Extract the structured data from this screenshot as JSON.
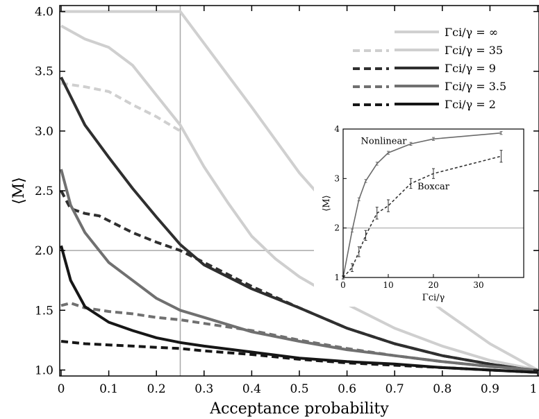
{
  "chart_data": [
    {
      "type": "line",
      "xlabel": "Acceptance probability",
      "ylabel": "⟨M⟩",
      "xlim": [
        0,
        1
      ],
      "ylim": [
        0.95,
        4.05
      ],
      "xticks": [
        "0",
        "0.1",
        "0.2",
        "0.3",
        "0.4",
        "0.5",
        "0.6",
        "0.7",
        "0.8",
        "0.9",
        "1"
      ],
      "yticks": [
        "1.0",
        "1.5",
        "2.0",
        "2.5",
        "3.0",
        "3.5",
        "4.0"
      ],
      "grid": false,
      "legend_position": "top-right",
      "reference_lines": {
        "x": 0.25,
        "y": 2.0
      },
      "series": [
        {
          "name": "Γci/γ = ∞",
          "style": "solid",
          "color": "#d0d0d0",
          "points": [
            [
              0,
              4.0
            ],
            [
              0.25,
              4.0
            ],
            [
              0.4,
              3.2
            ],
            [
              0.5,
              2.65
            ],
            [
              0.6,
              2.2
            ],
            [
              0.7,
              1.82
            ],
            [
              0.8,
              1.5
            ],
            [
              0.9,
              1.22
            ],
            [
              1.0,
              1.0
            ]
          ]
        },
        {
          "name": "Γci/γ = 35",
          "style": "solid",
          "color": "#cfcfcf",
          "points": [
            [
              0,
              3.88
            ],
            [
              0.05,
              3.77
            ],
            [
              0.1,
              3.7
            ],
            [
              0.15,
              3.55
            ],
            [
              0.2,
              3.3
            ],
            [
              0.25,
              3.05
            ],
            [
              0.3,
              2.7
            ],
            [
              0.35,
              2.4
            ],
            [
              0.4,
              2.12
            ],
            [
              0.45,
              1.93
            ],
            [
              0.5,
              1.78
            ],
            [
              0.6,
              1.55
            ],
            [
              0.7,
              1.35
            ],
            [
              0.8,
              1.2
            ],
            [
              0.9,
              1.08
            ],
            [
              1.0,
              1.0
            ]
          ]
        },
        {
          "name": "Γci/γ = 35",
          "style": "dashed",
          "color": "#cfcfcf",
          "points": [
            [
              0,
              3.4
            ],
            [
              0.05,
              3.37
            ],
            [
              0.1,
              3.33
            ],
            [
              0.15,
              3.22
            ],
            [
              0.2,
              3.12
            ],
            [
              0.25,
              3.0
            ]
          ]
        },
        {
          "name": "Γci/γ = 9",
          "style": "solid",
          "color": "#2f2f2f",
          "points": [
            [
              0,
              3.45
            ],
            [
              0.05,
              3.05
            ],
            [
              0.1,
              2.78
            ],
            [
              0.15,
              2.52
            ],
            [
              0.2,
              2.28
            ],
            [
              0.25,
              2.05
            ],
            [
              0.3,
              1.88
            ],
            [
              0.4,
              1.68
            ],
            [
              0.5,
              1.52
            ],
            [
              0.6,
              1.35
            ],
            [
              0.7,
              1.22
            ],
            [
              0.8,
              1.12
            ],
            [
              0.9,
              1.05
            ],
            [
              1.0,
              0.99
            ]
          ]
        },
        {
          "name": "Γci/γ = 9",
          "style": "dashed",
          "color": "#2f2f2f",
          "points": [
            [
              0,
              2.5
            ],
            [
              0.02,
              2.35
            ],
            [
              0.05,
              2.31
            ],
            [
              0.08,
              2.29
            ],
            [
              0.1,
              2.25
            ],
            [
              0.15,
              2.15
            ],
            [
              0.2,
              2.07
            ],
            [
              0.25,
              2.0
            ],
            [
              0.3,
              1.9
            ],
            [
              0.4,
              1.7
            ],
            [
              0.5,
              1.52
            ],
            [
              0.6,
              1.35
            ],
            [
              0.7,
              1.22
            ],
            [
              0.8,
              1.12
            ],
            [
              0.9,
              1.05
            ],
            [
              1.0,
              0.99
            ]
          ]
        },
        {
          "name": "Γci/γ = 3.5",
          "style": "solid",
          "color": "#707070",
          "points": [
            [
              0,
              2.68
            ],
            [
              0.02,
              2.38
            ],
            [
              0.05,
              2.15
            ],
            [
              0.1,
              1.9
            ],
            [
              0.15,
              1.75
            ],
            [
              0.2,
              1.6
            ],
            [
              0.25,
              1.5
            ],
            [
              0.3,
              1.44
            ],
            [
              0.4,
              1.32
            ],
            [
              0.5,
              1.24
            ],
            [
              0.6,
              1.17
            ],
            [
              0.7,
              1.12
            ],
            [
              0.8,
              1.07
            ],
            [
              0.9,
              1.03
            ],
            [
              1.0,
              1.0
            ]
          ]
        },
        {
          "name": "Γci/γ = 3.5",
          "style": "dashed",
          "color": "#707070",
          "points": [
            [
              0,
              1.54
            ],
            [
              0.02,
              1.56
            ],
            [
              0.05,
              1.52
            ],
            [
              0.1,
              1.49
            ],
            [
              0.15,
              1.47
            ],
            [
              0.2,
              1.44
            ],
            [
              0.25,
              1.42
            ],
            [
              0.3,
              1.39
            ],
            [
              0.4,
              1.33
            ],
            [
              0.5,
              1.25
            ],
            [
              0.6,
              1.18
            ],
            [
              0.7,
              1.12
            ],
            [
              0.8,
              1.07
            ],
            [
              0.9,
              1.03
            ],
            [
              1.0,
              1.0
            ]
          ]
        },
        {
          "name": "Γci/γ = 2",
          "style": "solid",
          "color": "#161616",
          "points": [
            [
              0,
              2.04
            ],
            [
              0.02,
              1.75
            ],
            [
              0.05,
              1.53
            ],
            [
              0.1,
              1.4
            ],
            [
              0.15,
              1.33
            ],
            [
              0.2,
              1.27
            ],
            [
              0.25,
              1.23
            ],
            [
              0.3,
              1.2
            ],
            [
              0.4,
              1.15
            ],
            [
              0.5,
              1.1
            ],
            [
              0.6,
              1.07
            ],
            [
              0.7,
              1.05
            ],
            [
              0.8,
              1.02
            ],
            [
              0.9,
              1.0
            ],
            [
              1.0,
              0.98
            ]
          ]
        },
        {
          "name": "Γci/γ = 2",
          "style": "dashed",
          "color": "#161616",
          "points": [
            [
              0,
              1.24
            ],
            [
              0.05,
              1.22
            ],
            [
              0.1,
              1.21
            ],
            [
              0.15,
              1.2
            ],
            [
              0.2,
              1.19
            ],
            [
              0.25,
              1.18
            ],
            [
              0.3,
              1.16
            ],
            [
              0.4,
              1.13
            ],
            [
              0.5,
              1.09
            ],
            [
              0.6,
              1.06
            ],
            [
              0.7,
              1.04
            ],
            [
              0.8,
              1.02
            ],
            [
              0.9,
              1.0
            ],
            [
              1.0,
              0.98
            ]
          ]
        }
      ],
      "legend": [
        {
          "label": "Γci/γ = ∞",
          "style": "solid",
          "color": "#d0d0d0"
        },
        {
          "label": "Γci/γ = 35",
          "style": "dashed",
          "color": "#cfcfcf"
        },
        {
          "label": "Γci/γ = 9",
          "style": "dashed",
          "color": "#2f2f2f"
        },
        {
          "label": "Γci/γ = 3.5",
          "style": "dashed",
          "color": "#707070"
        },
        {
          "label": "Γci/γ = 2",
          "style": "dashed",
          "color": "#161616"
        }
      ],
      "legend_solid_colors": [
        "#d0d0d0",
        "#cfcfcf",
        "#2f2f2f",
        "#707070",
        "#161616"
      ]
    },
    {
      "type": "line",
      "xlabel": "Γci/γ",
      "ylabel": "⟨M⟩",
      "xlim": [
        0,
        40
      ],
      "ylim": [
        1,
        4
      ],
      "xticks": [
        "0",
        "10",
        "20",
        "30"
      ],
      "yticks": [
        "1",
        "2",
        "3",
        "4"
      ],
      "reference_lines": {
        "y": 2.0
      },
      "series": [
        {
          "name": "Nonlinear",
          "style": "solid",
          "color": "#6a6a6a",
          "x": [
            0,
            2,
            3.5,
            5,
            7.5,
            10,
            15,
            20,
            35
          ],
          "y": [
            1.0,
            1.95,
            2.58,
            2.95,
            3.3,
            3.52,
            3.7,
            3.8,
            3.92
          ],
          "err": [
            0,
            0,
            0,
            0,
            0,
            0,
            0,
            0,
            0
          ]
        },
        {
          "name": "Boxcar",
          "style": "dashed",
          "color": "#333333",
          "x": [
            0,
            2,
            3.5,
            5,
            7.5,
            10,
            15,
            20,
            35
          ],
          "y": [
            1.0,
            1.2,
            1.52,
            1.85,
            2.3,
            2.45,
            2.9,
            3.1,
            3.45
          ],
          "err": [
            0,
            0.08,
            0.1,
            0.1,
            0.12,
            0.12,
            0.1,
            0.1,
            0.12
          ]
        }
      ],
      "annotations": [
        {
          "text": "Nonlinear",
          "x": 9,
          "y": 3.7
        },
        {
          "text": "Boxcar",
          "x": 20,
          "y": 2.78
        }
      ]
    }
  ]
}
